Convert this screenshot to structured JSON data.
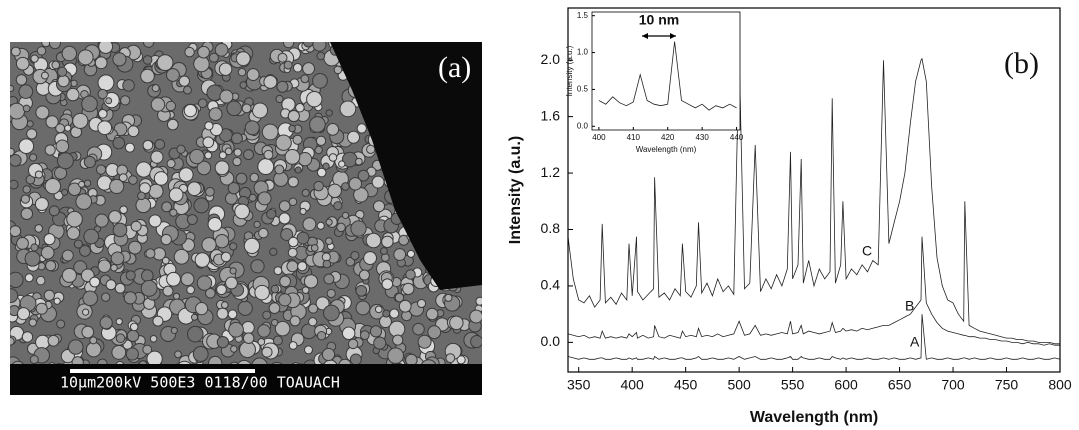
{
  "panel_a": {
    "label": "(a)",
    "scale_bar": "10µm200kV 500E3 0118/00 TOAUACH"
  },
  "chart_data": [
    {
      "type": "line",
      "panel_label": "(b)",
      "x_label": "Wavelength (nm)",
      "y_label": "Intensity (a.u.)",
      "x": [
        340,
        345,
        350,
        355,
        360,
        365,
        370,
        372,
        375,
        380,
        385,
        390,
        395,
        397,
        400,
        404,
        405,
        410,
        415,
        420,
        421,
        425,
        430,
        435,
        440,
        445,
        447,
        450,
        455,
        460,
        462,
        465,
        470,
        475,
        480,
        485,
        490,
        495,
        500,
        505,
        510,
        515,
        520,
        525,
        530,
        535,
        540,
        545,
        548,
        550,
        555,
        558,
        560,
        565,
        570,
        575,
        580,
        585,
        587,
        590,
        595,
        597,
        600,
        605,
        610,
        615,
        620,
        625,
        630,
        635,
        640,
        645,
        650,
        655,
        660,
        665,
        670,
        671,
        675,
        680,
        685,
        690,
        695,
        700,
        705,
        710,
        711,
        715,
        720,
        725,
        730,
        735,
        740,
        745,
        750,
        755,
        760,
        765,
        770,
        775,
        780,
        785,
        790,
        795,
        800
      ],
      "series": [
        {
          "name": "C",
          "color": "#222222",
          "values": [
            0.75,
            0.45,
            0.3,
            0.28,
            0.33,
            0.25,
            0.3,
            0.84,
            0.28,
            0.32,
            0.27,
            0.35,
            0.3,
            0.7,
            0.33,
            0.75,
            0.36,
            0.3,
            0.34,
            0.38,
            1.17,
            0.32,
            0.35,
            0.3,
            0.38,
            0.33,
            0.7,
            0.36,
            0.32,
            0.4,
            0.85,
            0.35,
            0.42,
            0.33,
            0.45,
            0.36,
            0.4,
            0.34,
            2.07,
            0.38,
            0.42,
            1.4,
            0.36,
            0.45,
            0.38,
            0.48,
            0.4,
            0.52,
            1.35,
            0.45,
            0.55,
            1.3,
            0.42,
            0.58,
            0.4,
            0.52,
            0.45,
            0.5,
            1.73,
            0.42,
            0.55,
            1.0,
            0.45,
            0.52,
            0.48,
            0.55,
            0.5,
            0.58,
            0.55,
            2.0,
            0.7,
            0.85,
            1.0,
            1.2,
            1.55,
            1.85,
            2.0,
            2.01,
            1.85,
            1.1,
            0.6,
            0.4,
            0.3,
            0.28,
            0.2,
            0.15,
            1.0,
            0.12,
            0.1,
            0.08,
            0.07,
            0.06,
            0.05,
            0.04,
            0.03,
            0.03,
            0.02,
            0.02,
            0.01,
            0.01,
            0.0,
            0.0,
            0.0,
            -0.01,
            -0.01
          ]
        },
        {
          "name": "B",
          "color": "#222222",
          "values": [
            0.06,
            0.05,
            0.04,
            0.05,
            0.03,
            0.04,
            0.03,
            0.08,
            0.03,
            0.04,
            0.03,
            0.04,
            0.03,
            0.06,
            0.04,
            0.07,
            0.03,
            0.05,
            0.03,
            0.04,
            0.12,
            0.04,
            0.03,
            0.05,
            0.04,
            0.03,
            0.08,
            0.04,
            0.05,
            0.04,
            0.1,
            0.04,
            0.05,
            0.04,
            0.06,
            0.04,
            0.05,
            0.06,
            0.15,
            0.05,
            0.06,
            0.12,
            0.05,
            0.06,
            0.05,
            0.06,
            0.07,
            0.06,
            0.15,
            0.06,
            0.07,
            0.12,
            0.06,
            0.08,
            0.07,
            0.06,
            0.07,
            0.08,
            0.14,
            0.07,
            0.08,
            0.1,
            0.08,
            0.09,
            0.08,
            0.1,
            0.09,
            0.1,
            0.11,
            0.12,
            0.12,
            0.14,
            0.16,
            0.18,
            0.2,
            0.25,
            0.3,
            0.75,
            0.28,
            0.2,
            0.14,
            0.1,
            0.08,
            0.07,
            0.06,
            0.05,
            0.05,
            0.04,
            0.04,
            0.03,
            0.03,
            0.02,
            0.02,
            0.01,
            0.01,
            0.0,
            0.0,
            -0.01,
            0.0,
            -0.01,
            -0.01,
            -0.02,
            -0.01,
            -0.02,
            -0.02
          ]
        },
        {
          "name": "A",
          "color": "#222222",
          "values": [
            -0.1,
            -0.11,
            -0.12,
            -0.11,
            -0.12,
            -0.12,
            -0.11,
            -0.11,
            -0.12,
            -0.12,
            -0.11,
            -0.12,
            -0.12,
            -0.11,
            -0.12,
            -0.11,
            -0.12,
            -0.12,
            -0.11,
            -0.12,
            -0.1,
            -0.12,
            -0.11,
            -0.12,
            -0.12,
            -0.11,
            -0.11,
            -0.12,
            -0.12,
            -0.11,
            -0.1,
            -0.12,
            -0.12,
            -0.11,
            -0.12,
            -0.12,
            -0.11,
            -0.12,
            -0.1,
            -0.12,
            -0.11,
            -0.1,
            -0.12,
            -0.12,
            -0.11,
            -0.12,
            -0.12,
            -0.11,
            -0.1,
            -0.12,
            -0.12,
            -0.1,
            -0.11,
            -0.12,
            -0.12,
            -0.11,
            -0.12,
            -0.12,
            -0.1,
            -0.11,
            -0.12,
            -0.11,
            -0.12,
            -0.11,
            -0.12,
            -0.12,
            -0.11,
            -0.12,
            -0.12,
            -0.11,
            -0.12,
            -0.11,
            -0.12,
            -0.12,
            -0.11,
            -0.12,
            -0.11,
            0.2,
            -0.12,
            -0.11,
            -0.12,
            -0.12,
            -0.11,
            -0.12,
            -0.12,
            -0.11,
            -0.11,
            -0.12,
            -0.11,
            -0.12,
            -0.12,
            -0.11,
            -0.12,
            -0.12,
            -0.11,
            -0.12,
            -0.12,
            -0.11,
            -0.12,
            -0.12,
            -0.11,
            -0.12,
            -0.12,
            -0.11,
            -0.12
          ]
        }
      ],
      "xlim": [
        340,
        800
      ],
      "xticks": [
        350,
        400,
        450,
        500,
        550,
        600,
        650,
        700,
        750,
        800
      ],
      "ylim": [
        -0.21,
        2.37
      ],
      "yticks": [
        {
          "value": 0,
          "label": "0.0"
        },
        0.4,
        0.8,
        1.2,
        1.6,
        {
          "value": 2,
          "label": "2.0"
        }
      ]
    },
    {
      "type": "line",
      "x_label": "Wavelength (nm)",
      "y_label": "Intensity (a.u.)",
      "annotation": "10 nm",
      "x": [
        400,
        402,
        404,
        406,
        408,
        410,
        412,
        414,
        416,
        418,
        420,
        422,
        424,
        426,
        428,
        430,
        432,
        434,
        436,
        438,
        440
      ],
      "series": [
        {
          "name": null,
          "color": "#222222",
          "values": [
            0.35,
            0.3,
            0.4,
            0.32,
            0.28,
            0.33,
            0.7,
            0.35,
            0.3,
            0.28,
            0.3,
            1.15,
            0.35,
            0.3,
            0.25,
            0.3,
            0.22,
            0.28,
            0.25,
            0.3,
            0.25
          ]
        }
      ],
      "xlim": [
        398,
        441
      ],
      "xticks": [
        400,
        410,
        420,
        430,
        440
      ],
      "ylim": [
        -0.05,
        1.55
      ],
      "yticks": [
        {
          "value": 0,
          "label": "0.0"
        },
        0.5,
        {
          "value": 1,
          "label": "1.0"
        },
        1.5
      ]
    }
  ]
}
